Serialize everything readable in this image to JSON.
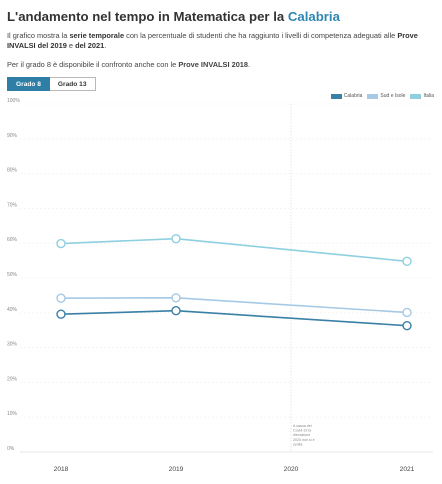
{
  "header": {
    "title_prefix": "L'andamento nel tempo in Matematica per la ",
    "title_region": "Calabria",
    "desc_1": "Il grafico mostra la ",
    "desc_b1": "serie temporale",
    "desc_2": " con la percentuale di studenti che ha raggiunto i livelli di competenza adeguati alle ",
    "desc_b2": "Prove INVALSI del 2019",
    "desc_3": " e ",
    "desc_b3": "del 2021",
    "desc_4": ".",
    "note_1": "Per il grado 8 è disponibile il confronto anche con le ",
    "note_b1": "Prove INVALSI 2018",
    "note_2": "."
  },
  "tabs": [
    {
      "label": "Grado 8",
      "active": true
    },
    {
      "label": "Grado 13",
      "active": false
    }
  ],
  "chart_data": {
    "type": "line",
    "categories": [
      "2018",
      "2019",
      "2020",
      "2021"
    ],
    "ylim": [
      0,
      100
    ],
    "yticks": [
      "0%",
      "10%",
      "20%",
      "30%",
      "40%",
      "50%",
      "60%",
      "70%",
      "80%",
      "90%",
      "100%"
    ],
    "series": [
      {
        "name": "Calabria",
        "color": "#3a7fa6",
        "values": [
          39.6,
          40.6,
          null,
          36.3
        ]
      },
      {
        "name": "Sud e Isole",
        "color": "#a6c9e6",
        "values": [
          44.2,
          44.3,
          null,
          40.1
        ]
      },
      {
        "name": "Italia",
        "color": "#8ecfe0",
        "values": [
          59.9,
          61.3,
          null,
          54.8
        ]
      }
    ],
    "annotation": "A causa del Covid-19 la rilevazione 2020 non si è svolta"
  }
}
